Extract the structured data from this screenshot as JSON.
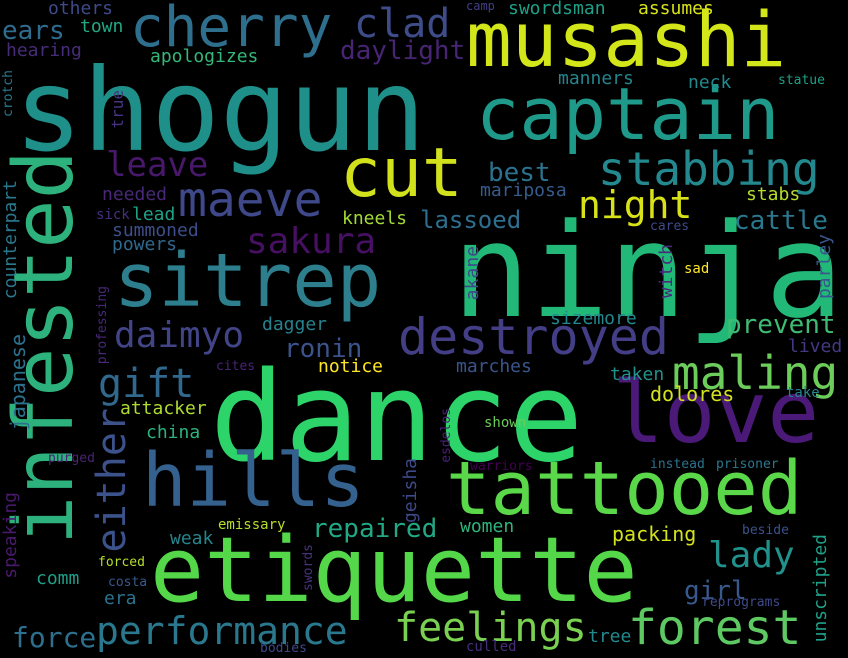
{
  "words": {
    "shogun": {
      "text": "shogun",
      "color": "#1f8f8a"
    },
    "ninja": {
      "text": "ninja",
      "color": "#22b878"
    },
    "dance": {
      "text": "dance",
      "color": "#2cd46a"
    },
    "musashi": {
      "text": "musashi",
      "color": "#d3e61a"
    },
    "infested": {
      "text": "infested",
      "color": "#2db27d"
    },
    "etiquette": {
      "text": "etiquette",
      "color": "#54d84a"
    },
    "tattooed": {
      "text": "tattooed",
      "color": "#5ad84a"
    },
    "love": {
      "text": "love",
      "color": "#4b1a79"
    },
    "captain": {
      "text": "captain",
      "color": "#1f9a8a"
    },
    "cherry": {
      "text": "cherry",
      "color": "#2f6f8e"
    },
    "sitrep": {
      "text": "sitrep",
      "color": "#2d7f8e"
    },
    "hills": {
      "text": "hills",
      "color": "#34618d"
    },
    "cut": {
      "text": "cut",
      "color": "#d1e21c"
    },
    "maeve": {
      "text": "maeve",
      "color": "#3f4889"
    },
    "stabbing": {
      "text": "stabbing",
      "color": "#23898e"
    },
    "destroyed": {
      "text": "destroyed",
      "color": "#433e85"
    },
    "forest": {
      "text": "forest",
      "color": "#5ec962"
    },
    "performance": {
      "text": "performance",
      "color": "#2a788e"
    },
    "feelings": {
      "text": "feelings",
      "color": "#7ad151"
    },
    "maling": {
      "text": "maling",
      "color": "#6ccd5a"
    },
    "either": {
      "text": "either",
      "color": "#3b528b"
    },
    "clad": {
      "text": "clad",
      "color": "#3e4c8a"
    },
    "leave": {
      "text": "leave",
      "color": "#48186a"
    },
    "night": {
      "text": "night",
      "color": "#d8e219"
    },
    "sakura": {
      "text": "sakura",
      "color": "#471063"
    },
    "daimyo": {
      "text": "daimyo",
      "color": "#414487"
    },
    "gift": {
      "text": "gift",
      "color": "#31688e"
    },
    "lady": {
      "text": "lady",
      "color": "#21918c"
    },
    "repaired": {
      "text": "repaired",
      "color": "#22a884"
    },
    "ronin": {
      "text": "ronin",
      "color": "#3b528b"
    },
    "prevent": {
      "text": "prevent",
      "color": "#3fbc73"
    },
    "best": {
      "text": "best",
      "color": "#2c728e"
    },
    "daylight": {
      "text": "daylight",
      "color": "#482475"
    },
    "ears": {
      "text": "ears",
      "color": "#2f6c8e"
    },
    "town": {
      "text": "town",
      "color": "#22a884"
    },
    "swordsman": {
      "text": "swordsman",
      "color": "#1fa088"
    },
    "assumes": {
      "text": "assumes",
      "color": "#d8e219"
    },
    "camp": {
      "text": "camp",
      "color": "#433e85"
    },
    "others": {
      "text": "others",
      "color": "#3e4a89"
    },
    "hearing": {
      "text": "hearing",
      "color": "#472c7a"
    },
    "apologizes": {
      "text": "apologizes",
      "color": "#35b779"
    },
    "manners": {
      "text": "manners",
      "color": "#25848e"
    },
    "neck": {
      "text": "neck",
      "color": "#23898e"
    },
    "statue": {
      "text": "statue",
      "color": "#1fa088"
    },
    "crotch": {
      "text": "crotch",
      "color": "#2a788e"
    },
    "true": {
      "text": "true",
      "color": "#46337f"
    },
    "needed": {
      "text": "needed",
      "color": "#482878"
    },
    "mariposa": {
      "text": "mariposa",
      "color": "#365c8d"
    },
    "stabs": {
      "text": "stabs",
      "color": "#b5de2b"
    },
    "sick": {
      "text": "sick",
      "color": "#46307e"
    },
    "lead": {
      "text": "lead",
      "color": "#1fa188"
    },
    "kneels": {
      "text": "kneels",
      "color": "#a2da37"
    },
    "lassoed": {
      "text": "lassoed",
      "color": "#2e6e8e"
    },
    "cattle": {
      "text": "cattle",
      "color": "#2a778e"
    },
    "summoned": {
      "text": "summoned",
      "color": "#3d4e8a"
    },
    "cares": {
      "text": "cares",
      "color": "#3e4989"
    },
    "powers": {
      "text": "powers",
      "color": "#31688e"
    },
    "parley": {
      "text": "parley",
      "color": "#39568c"
    },
    "witch": {
      "text": "witch",
      "color": "#472a7a"
    },
    "akane": {
      "text": "akane",
      "color": "#3e4989"
    },
    "sad": {
      "text": "sad",
      "color": "#fde725"
    },
    "counterpart": {
      "text": "counterpart",
      "color": "#2a788e"
    },
    "professing": {
      "text": "professing",
      "color": "#482878"
    },
    "dagger": {
      "text": "dagger",
      "color": "#26828e"
    },
    "sizemore": {
      "text": "sizemore",
      "color": "#23888e"
    },
    "japanese": {
      "text": "japanese",
      "color": "#2c728e"
    },
    "lived": {
      "text": "lived",
      "color": "#453882"
    },
    "cites": {
      "text": "cites",
      "color": "#482475"
    },
    "notice": {
      "text": "notice",
      "color": "#fde725"
    },
    "marches": {
      "text": "marches",
      "color": "#39568c"
    },
    "taken": {
      "text": "taken",
      "color": "#21918c"
    },
    "take": {
      "text": "take",
      "color": "#25848e"
    },
    "attacker": {
      "text": "attacker",
      "color": "#addc30"
    },
    "dolores": {
      "text": "dolores",
      "color": "#d2e21b"
    },
    "china": {
      "text": "china",
      "color": "#2db27d"
    },
    "esdelos": {
      "text": "esdelos",
      "color": "#482173"
    },
    "shown": {
      "text": "shown",
      "color": "#6ccd5a"
    },
    "purged": {
      "text": "purged",
      "color": "#482475"
    },
    "warriors": {
      "text": "warriors",
      "color": "#440154"
    },
    "geisha": {
      "text": "geisha",
      "color": "#3e4989"
    },
    "instead": {
      "text": "instead",
      "color": "#2c728e"
    },
    "prisoner": {
      "text": "prisoner",
      "color": "#2a788e"
    },
    "speaking": {
      "text": "speaking",
      "color": "#481a6c"
    },
    "emissary": {
      "text": "emissary",
      "color": "#b5de2b"
    },
    "weak": {
      "text": "weak",
      "color": "#25858e"
    },
    "women": {
      "text": "women",
      "color": "#2fb47c"
    },
    "packing": {
      "text": "packing",
      "color": "#d2e21b"
    },
    "beside": {
      "text": "beside",
      "color": "#3b528b"
    },
    "unscripted": {
      "text": "unscripted",
      "color": "#1fa088"
    },
    "comm": {
      "text": "comm",
      "color": "#1f9e89"
    },
    "forced": {
      "text": "forced",
      "color": "#b5de2b"
    },
    "costa": {
      "text": "costa",
      "color": "#38598c"
    },
    "swords": {
      "text": "swords",
      "color": "#46327e"
    },
    "era": {
      "text": "era",
      "color": "#2c728e"
    },
    "girl": {
      "text": "girl",
      "color": "#38598c"
    },
    "reprograms": {
      "text": "reprograms",
      "color": "#3e4989"
    },
    "force": {
      "text": "force",
      "color": "#2d708e"
    },
    "tree": {
      "text": "tree",
      "color": "#23898e"
    },
    "bodies": {
      "text": "bodies",
      "color": "#3f4788"
    },
    "culled": {
      "text": "culled",
      "color": "#472d7b"
    }
  }
}
